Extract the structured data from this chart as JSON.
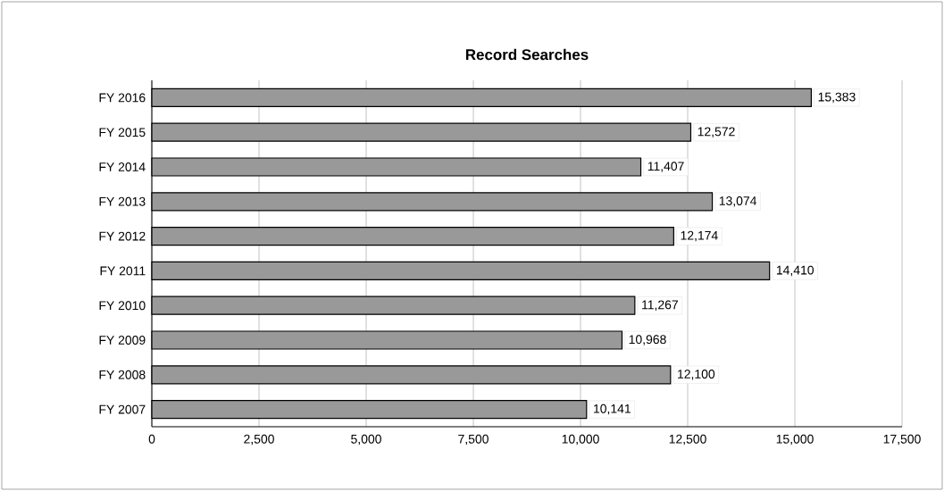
{
  "chart_data": {
    "type": "bar",
    "orientation": "horizontal",
    "title": "Record Searches",
    "categories": [
      "FY 2016",
      "FY 2015",
      "FY 2014",
      "FY 2013",
      "FY 2012",
      "FY 2011",
      "FY 2010",
      "FY 2009",
      "FY 2008",
      "FY 2007"
    ],
    "values": [
      15383,
      12572,
      11407,
      13074,
      12174,
      14410,
      11267,
      10968,
      12100,
      10141
    ],
    "value_labels": [
      "15,383",
      "12,572",
      "11,407",
      "13,074",
      "12,174",
      "14,410",
      "11,267",
      "10,968",
      "12,100",
      "10,141"
    ],
    "color": "#999999",
    "xlim": [
      0,
      17500
    ],
    "xticks": [
      0,
      {
        "value": 2500,
        "label": "2,500"
      },
      {
        "value": 5000,
        "label": "5,000"
      },
      {
        "value": 7500,
        "label": "7,500"
      },
      {
        "value": 10000,
        "label": "10,000"
      },
      {
        "value": 12500,
        "label": "12,500"
      },
      {
        "value": 15000,
        "label": "15,000"
      },
      {
        "value": 17500,
        "label": "17,500"
      }
    ],
    "grid": "x"
  }
}
